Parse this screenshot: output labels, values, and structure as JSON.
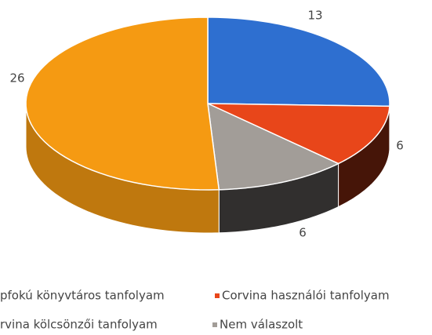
{
  "chart_data": {
    "type": "pie3d",
    "categories": [
      "pfokú könyvtáros tanfolyam",
      "Corvina használói tanfolyam",
      "rvina kölcsönzői tanfolyam",
      "Nem válaszolt"
    ],
    "values": [
      26,
      6,
      13,
      6
    ],
    "colors": [
      "#f59a12",
      "#e8461a",
      "#2e6fd0",
      "#a29d98"
    ]
  }
}
